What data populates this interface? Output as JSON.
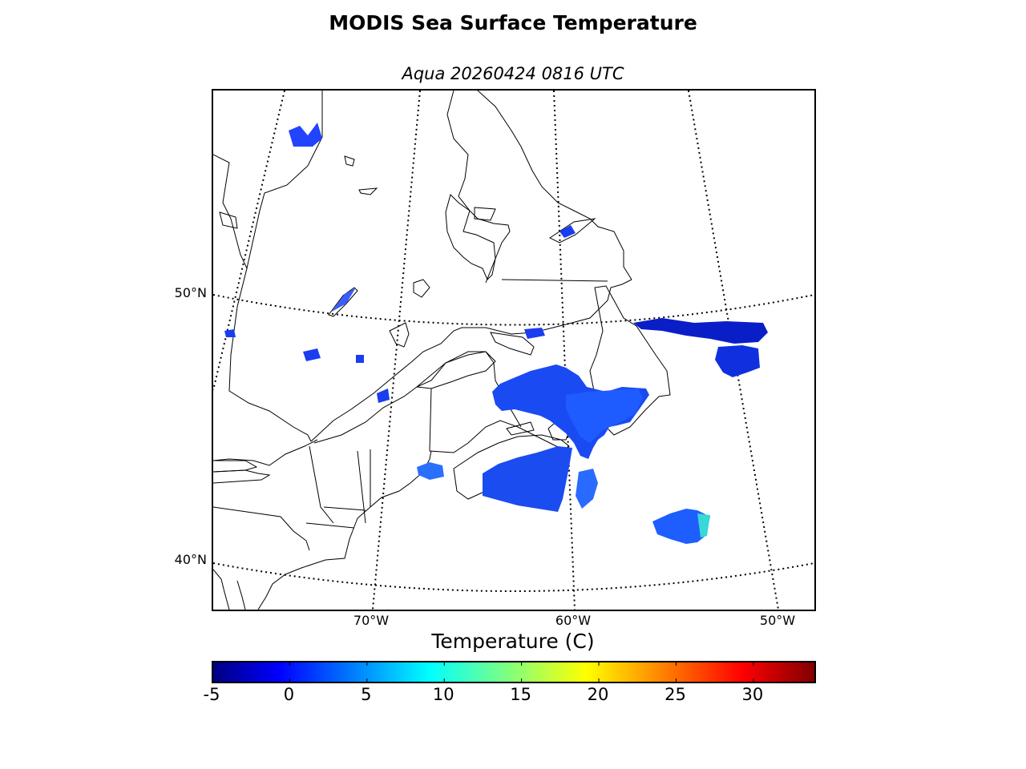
{
  "title": "MODIS Sea Surface Temperature",
  "subtitle": "Aqua 20260424 0816 UTC",
  "map": {
    "lat_labels": [
      {
        "label": "50°N",
        "lat": 50
      },
      {
        "label": "40°N",
        "lat": 40
      }
    ],
    "lon_labels": [
      {
        "label": "70°W",
        "lon": -70
      },
      {
        "label": "60°W",
        "lon": -60
      },
      {
        "label": "50°W",
        "lon": -50
      }
    ],
    "colors": {
      "land_outline": "#000000",
      "cold_sst": "#0a22e6",
      "mid_sst": "#1e64ff",
      "warm_sst": "#20e0d0"
    }
  },
  "colorbar": {
    "title": "Temperature (C)",
    "vmin": -5,
    "vmax": 34,
    "ticks": [
      "-5",
      "0",
      "5",
      "10",
      "15",
      "20",
      "25",
      "30"
    ]
  }
}
